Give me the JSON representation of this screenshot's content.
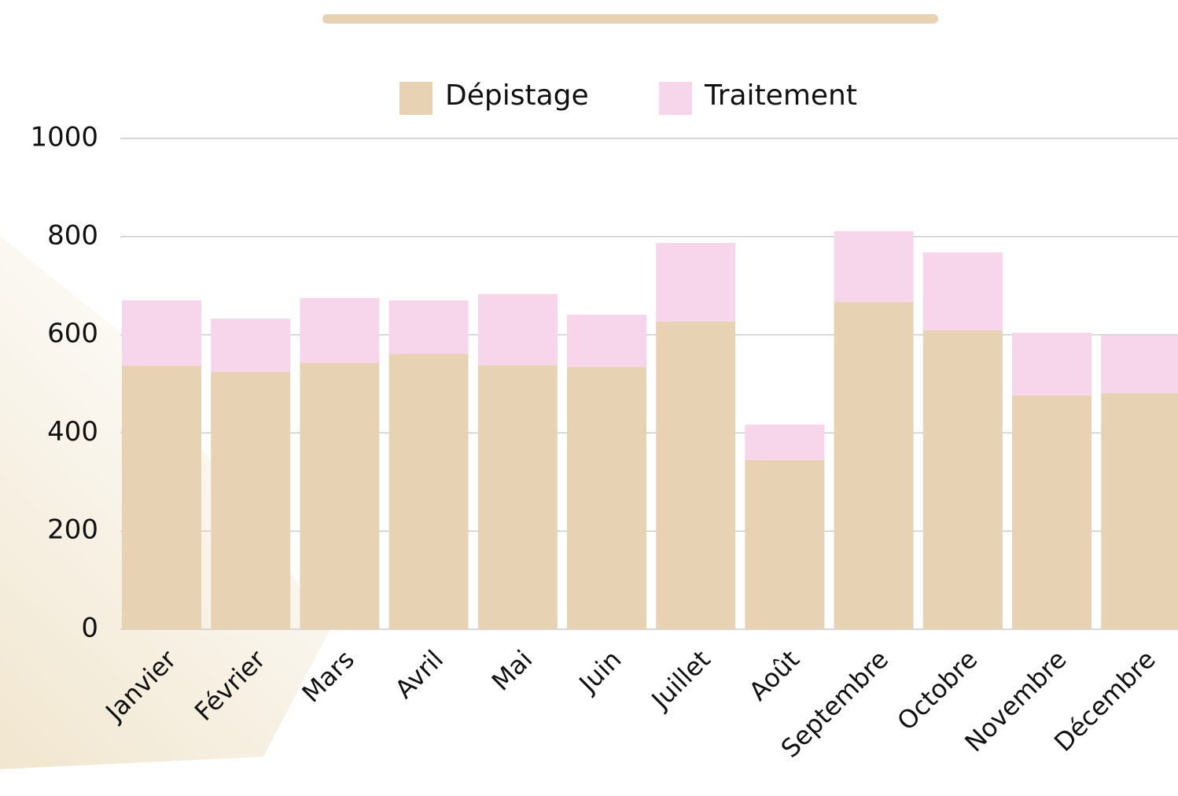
{
  "chart_data": {
    "type": "stacked_bar",
    "categories": [
      "Janvier",
      "Février",
      "Mars",
      "Avril",
      "Mai",
      "Juin",
      "Juillet",
      "Août",
      "Septembre",
      "Octobre",
      "Novembre",
      "Décembre"
    ],
    "series": [
      {
        "name": "Dépistage",
        "color": "#e8d2b4",
        "values": [
          537,
          524,
          543,
          561,
          538,
          535,
          627,
          345,
          667,
          609,
          476,
          481
        ]
      },
      {
        "name": "Traitement",
        "color": "#f7d6eb",
        "values": [
          133,
          109,
          132,
          109,
          145,
          106,
          160,
          72,
          144,
          159,
          128,
          118
        ]
      }
    ],
    "ylim": [
      0,
      1000
    ],
    "yticks": [
      0,
      200,
      400,
      600,
      800,
      1000
    ],
    "grid": true,
    "legend": "top"
  }
}
